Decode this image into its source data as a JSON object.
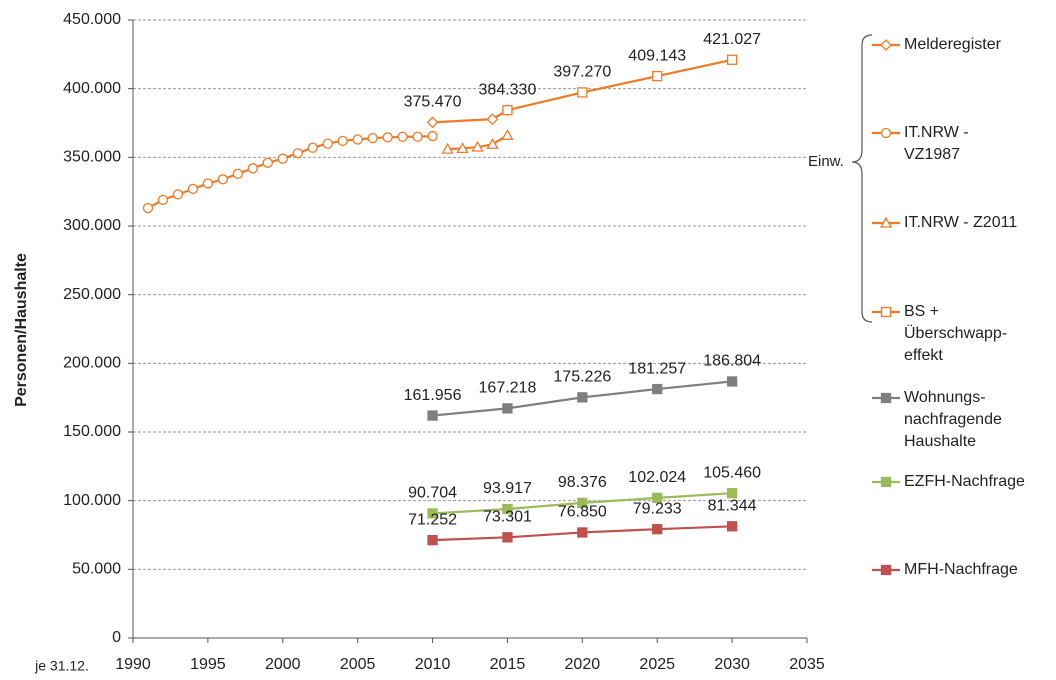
{
  "chart_data": {
    "type": "line",
    "y_label": "Personen/Haushalte",
    "x_prefix_label": "je 31.12.",
    "annotation": "Einw.",
    "xlim": [
      1990,
      2035
    ],
    "xticks": [
      1990,
      1995,
      2000,
      2005,
      2010,
      2015,
      2020,
      2025,
      2030,
      2035
    ],
    "ylim": [
      0,
      450000
    ],
    "yticks": [
      0,
      {
        "value": 50000,
        "label": "50.000"
      },
      {
        "value": 100000,
        "label": "100.000"
      },
      {
        "value": 150000,
        "label": "150.000"
      },
      {
        "value": 200000,
        "label": "200.000"
      },
      {
        "value": 250000,
        "label": "250.000"
      },
      {
        "value": 300000,
        "label": "300.000"
      },
      {
        "value": 350000,
        "label": "350.000"
      },
      {
        "value": 400000,
        "label": "400.000"
      },
      {
        "value": 450000,
        "label": "450.000"
      }
    ],
    "grid": true,
    "series": [
      {
        "name": "Melderegister",
        "color": "#f07a26",
        "marker": "diamond",
        "x": [
          2010,
          2014,
          2015
        ],
        "values": [
          375470,
          377800,
          384330
        ],
        "value_labels": [
          "375.470",
          null,
          null
        ]
      },
      {
        "name": "IT.NRW -\nVZ1987",
        "color": "#f07a26",
        "marker": "circle",
        "x": [
          1991,
          1992,
          1993,
          1994,
          1995,
          1996,
          1997,
          1998,
          1999,
          2000,
          2001,
          2002,
          2003,
          2004,
          2005,
          2006,
          2007,
          2008,
          2009,
          2010
        ],
        "values": [
          313000,
          319000,
          323000,
          327000,
          331000,
          334000,
          338000,
          342000,
          346000,
          349000,
          353000,
          357000,
          360000,
          362000,
          363000,
          364000,
          364500,
          365000,
          365000,
          365500
        ]
      },
      {
        "name": "IT.NRW - Z2011",
        "color": "#f07a26",
        "marker": "triangle",
        "x": [
          2011,
          2012,
          2013,
          2014,
          2015
        ],
        "values": [
          356000,
          356500,
          357500,
          359500,
          366000
        ]
      },
      {
        "name": "BS +\nÜberschwapp-\neffekt",
        "color": "#f07a26",
        "marker": "square-open",
        "x": [
          2015,
          2020,
          2025,
          2030
        ],
        "values": [
          384330,
          397270,
          409143,
          421027
        ],
        "value_labels": [
          "384.330",
          "397.270",
          "409.143",
          "421.027"
        ]
      },
      {
        "name": "Wohnungs-\nnachfragende\nHaushalte",
        "color": "#7f7f7f",
        "marker": "square",
        "x": [
          2010,
          2015,
          2020,
          2025,
          2030
        ],
        "values": [
          161956,
          167218,
          175226,
          181257,
          186804
        ],
        "value_labels": [
          "161.956",
          "167.218",
          "175.226",
          "181.257",
          "186.804"
        ]
      },
      {
        "name": "EZFH-Nachfrage",
        "color": "#9bbb59",
        "marker": "square",
        "x": [
          2010,
          2015,
          2020,
          2025,
          2030
        ],
        "values": [
          90704,
          93917,
          98376,
          102024,
          105460
        ],
        "value_labels": [
          "90.704",
          "93.917",
          "98.376",
          "102.024",
          "105.460"
        ]
      },
      {
        "name": "MFH-Nachfrage",
        "color": "#c0504d",
        "marker": "square",
        "x": [
          2010,
          2015,
          2020,
          2025,
          2030
        ],
        "values": [
          71252,
          73301,
          76850,
          79233,
          81344
        ],
        "value_labels": [
          "71.252",
          "73.301",
          "76.850",
          "79.233",
          "81.344"
        ]
      }
    ]
  }
}
